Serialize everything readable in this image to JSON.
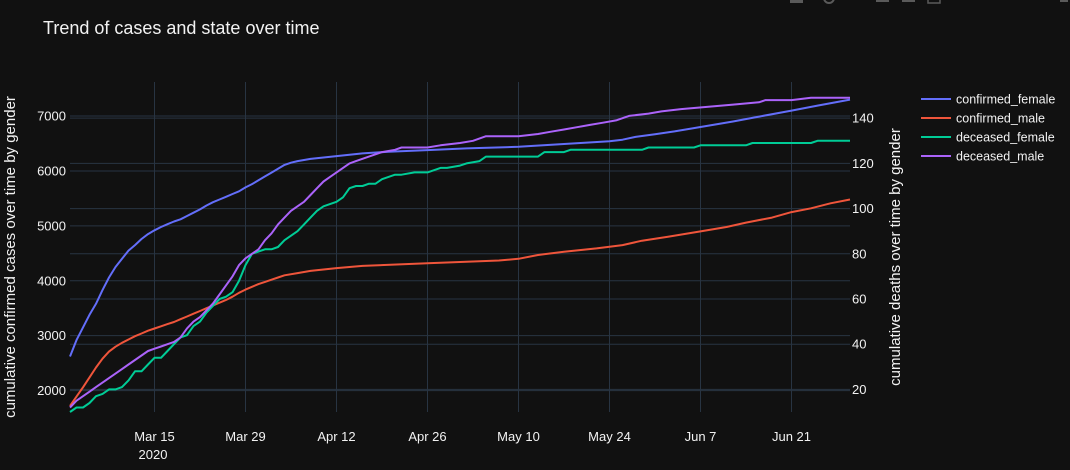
{
  "chart_data": {
    "type": "line",
    "title": "Trend of cases and state over time",
    "ylabel_left": "cumulative confirmed cases over time by gender",
    "ylabel_right": "cumulative deaths over time by gender",
    "x_ticks": [
      "Mar 15",
      "Mar 29",
      "Apr 12",
      "Apr 26",
      "May 10",
      "May 24",
      "Jun 7",
      "Jun 21"
    ],
    "x_year_label": "2020",
    "x_range": [
      "2020-03-02",
      "2020-06-30"
    ],
    "y_left_ticks": [
      2000,
      3000,
      4000,
      5000,
      6000,
      7000
    ],
    "y_left_range": [
      1610,
      7620
    ],
    "y_right_ticks": [
      20,
      40,
      60,
      80,
      100,
      120,
      140
    ],
    "y_right_range": [
      10,
      156
    ],
    "grid": true,
    "legend_position": "top-right",
    "series": [
      {
        "name": "confirmed_female",
        "axis": "left",
        "color": "#636efa",
        "points": [
          [
            "2020-03-02",
            2621
          ],
          [
            "2020-03-03",
            2920
          ],
          [
            "2020-03-04",
            3150
          ],
          [
            "2020-03-05",
            3380
          ],
          [
            "2020-03-06",
            3580
          ],
          [
            "2020-03-07",
            3830
          ],
          [
            "2020-03-08",
            4060
          ],
          [
            "2020-03-09",
            4250
          ],
          [
            "2020-03-10",
            4400
          ],
          [
            "2020-03-11",
            4550
          ],
          [
            "2020-03-12",
            4650
          ],
          [
            "2020-03-13",
            4760
          ],
          [
            "2020-03-14",
            4850
          ],
          [
            "2020-03-15",
            4920
          ],
          [
            "2020-03-16",
            4980
          ],
          [
            "2020-03-17",
            5030
          ],
          [
            "2020-03-18",
            5080
          ],
          [
            "2020-03-19",
            5120
          ],
          [
            "2020-03-20",
            5180
          ],
          [
            "2020-03-21",
            5240
          ],
          [
            "2020-03-22",
            5300
          ],
          [
            "2020-03-23",
            5370
          ],
          [
            "2020-03-24",
            5430
          ],
          [
            "2020-03-25",
            5480
          ],
          [
            "2020-03-26",
            5530
          ],
          [
            "2020-03-27",
            5580
          ],
          [
            "2020-03-28",
            5630
          ],
          [
            "2020-03-29",
            5700
          ],
          [
            "2020-03-30",
            5760
          ],
          [
            "2020-03-31",
            5830
          ],
          [
            "2020-04-01",
            5900
          ],
          [
            "2020-04-02",
            5970
          ],
          [
            "2020-04-03",
            6040
          ],
          [
            "2020-04-04",
            6110
          ],
          [
            "2020-04-05",
            6150
          ],
          [
            "2020-04-06",
            6180
          ],
          [
            "2020-04-08",
            6220
          ],
          [
            "2020-04-12",
            6270
          ],
          [
            "2020-04-16",
            6320
          ],
          [
            "2020-04-20",
            6350
          ],
          [
            "2020-04-26",
            6380
          ],
          [
            "2020-05-02",
            6410
          ],
          [
            "2020-05-10",
            6440
          ],
          [
            "2020-05-17",
            6490
          ],
          [
            "2020-05-24",
            6540
          ],
          [
            "2020-05-26",
            6570
          ],
          [
            "2020-05-28",
            6620
          ],
          [
            "2020-05-31",
            6670
          ],
          [
            "2020-06-03",
            6720
          ],
          [
            "2020-06-07",
            6800
          ],
          [
            "2020-06-12",
            6900
          ],
          [
            "2020-06-16",
            6990
          ],
          [
            "2020-06-21",
            7100
          ],
          [
            "2020-06-25",
            7190
          ],
          [
            "2020-06-30",
            7300
          ]
        ]
      },
      {
        "name": "confirmed_male",
        "axis": "left",
        "color": "#ef553b",
        "points": [
          [
            "2020-03-02",
            1720
          ],
          [
            "2020-03-03",
            1890
          ],
          [
            "2020-03-04",
            2060
          ],
          [
            "2020-03-05",
            2240
          ],
          [
            "2020-03-06",
            2420
          ],
          [
            "2020-03-07",
            2580
          ],
          [
            "2020-03-08",
            2710
          ],
          [
            "2020-03-09",
            2800
          ],
          [
            "2020-03-10",
            2870
          ],
          [
            "2020-03-11",
            2930
          ],
          [
            "2020-03-12",
            2990
          ],
          [
            "2020-03-13",
            3040
          ],
          [
            "2020-03-14",
            3090
          ],
          [
            "2020-03-15",
            3130
          ],
          [
            "2020-03-16",
            3170
          ],
          [
            "2020-03-17",
            3210
          ],
          [
            "2020-03-18",
            3250
          ],
          [
            "2020-03-19",
            3300
          ],
          [
            "2020-03-20",
            3350
          ],
          [
            "2020-03-21",
            3400
          ],
          [
            "2020-03-22",
            3450
          ],
          [
            "2020-03-23",
            3500
          ],
          [
            "2020-03-24",
            3550
          ],
          [
            "2020-03-25",
            3600
          ],
          [
            "2020-03-26",
            3650
          ],
          [
            "2020-03-27",
            3710
          ],
          [
            "2020-03-28",
            3780
          ],
          [
            "2020-03-29",
            3840
          ],
          [
            "2020-03-30",
            3890
          ],
          [
            "2020-03-31",
            3940
          ],
          [
            "2020-04-01",
            3980
          ],
          [
            "2020-04-02",
            4020
          ],
          [
            "2020-04-03",
            4060
          ],
          [
            "2020-04-04",
            4100
          ],
          [
            "2020-04-06",
            4140
          ],
          [
            "2020-04-08",
            4180
          ],
          [
            "2020-04-12",
            4230
          ],
          [
            "2020-04-16",
            4270
          ],
          [
            "2020-04-26",
            4320
          ],
          [
            "2020-05-07",
            4370
          ],
          [
            "2020-05-10",
            4400
          ],
          [
            "2020-05-13",
            4470
          ],
          [
            "2020-05-17",
            4530
          ],
          [
            "2020-05-22",
            4590
          ],
          [
            "2020-05-26",
            4650
          ],
          [
            "2020-05-29",
            4730
          ],
          [
            "2020-06-02",
            4800
          ],
          [
            "2020-06-07",
            4900
          ],
          [
            "2020-06-11",
            4980
          ],
          [
            "2020-06-14",
            5060
          ],
          [
            "2020-06-18",
            5150
          ],
          [
            "2020-06-21",
            5250
          ],
          [
            "2020-06-24",
            5320
          ],
          [
            "2020-06-27",
            5410
          ],
          [
            "2020-06-30",
            5480
          ]
        ]
      },
      {
        "name": "deceased_female",
        "axis": "right",
        "color": "#00cc96",
        "points": [
          [
            "2020-03-02",
            10
          ],
          [
            "2020-03-03",
            12
          ],
          [
            "2020-03-04",
            12
          ],
          [
            "2020-03-05",
            14
          ],
          [
            "2020-03-06",
            17
          ],
          [
            "2020-03-07",
            18
          ],
          [
            "2020-03-08",
            20
          ],
          [
            "2020-03-09",
            20
          ],
          [
            "2020-03-10",
            21
          ],
          [
            "2020-03-11",
            24
          ],
          [
            "2020-03-12",
            28
          ],
          [
            "2020-03-13",
            28
          ],
          [
            "2020-03-14",
            31
          ],
          [
            "2020-03-15",
            34
          ],
          [
            "2020-03-16",
            34
          ],
          [
            "2020-03-17",
            37
          ],
          [
            "2020-03-18",
            40
          ],
          [
            "2020-03-19",
            43
          ],
          [
            "2020-03-20",
            44
          ],
          [
            "2020-03-21",
            48
          ],
          [
            "2020-03-22",
            50
          ],
          [
            "2020-03-23",
            54
          ],
          [
            "2020-03-24",
            57
          ],
          [
            "2020-03-25",
            60
          ],
          [
            "2020-03-26",
            61
          ],
          [
            "2020-03-27",
            63
          ],
          [
            "2020-03-28",
            68
          ],
          [
            "2020-03-29",
            75
          ],
          [
            "2020-03-30",
            80
          ],
          [
            "2020-03-31",
            81
          ],
          [
            "2020-04-01",
            82
          ],
          [
            "2020-04-02",
            82
          ],
          [
            "2020-04-03",
            83
          ],
          [
            "2020-04-04",
            86
          ],
          [
            "2020-04-05",
            88
          ],
          [
            "2020-04-06",
            90
          ],
          [
            "2020-04-07",
            93
          ],
          [
            "2020-04-08",
            96
          ],
          [
            "2020-04-09",
            99
          ],
          [
            "2020-04-10",
            101
          ],
          [
            "2020-04-11",
            102
          ],
          [
            "2020-04-12",
            103
          ],
          [
            "2020-04-13",
            105
          ],
          [
            "2020-04-14",
            109
          ],
          [
            "2020-04-15",
            110
          ],
          [
            "2020-04-16",
            110
          ],
          [
            "2020-04-17",
            111
          ],
          [
            "2020-04-18",
            111
          ],
          [
            "2020-04-19",
            113
          ],
          [
            "2020-04-20",
            114
          ],
          [
            "2020-04-21",
            115
          ],
          [
            "2020-04-22",
            115
          ],
          [
            "2020-04-24",
            116
          ],
          [
            "2020-04-26",
            116
          ],
          [
            "2020-04-27",
            117
          ],
          [
            "2020-04-28",
            118
          ],
          [
            "2020-04-29",
            118
          ],
          [
            "2020-05-01",
            119
          ],
          [
            "2020-05-02",
            120
          ],
          [
            "2020-05-04",
            121
          ],
          [
            "2020-05-05",
            123
          ],
          [
            "2020-05-10",
            123
          ],
          [
            "2020-05-13",
            123
          ],
          [
            "2020-05-14",
            125
          ],
          [
            "2020-05-17",
            125
          ],
          [
            "2020-05-18",
            126
          ],
          [
            "2020-05-29",
            126
          ],
          [
            "2020-05-30",
            127
          ],
          [
            "2020-06-06",
            127
          ],
          [
            "2020-06-07",
            128
          ],
          [
            "2020-06-14",
            128
          ],
          [
            "2020-06-15",
            129
          ],
          [
            "2020-06-24",
            129
          ],
          [
            "2020-06-25",
            130
          ],
          [
            "2020-06-30",
            130
          ]
        ]
      },
      {
        "name": "deceased_male",
        "axis": "right",
        "color": "#ab63fa",
        "points": [
          [
            "2020-03-02",
            12
          ],
          [
            "2020-03-03",
            15
          ],
          [
            "2020-03-04",
            17
          ],
          [
            "2020-03-05",
            19
          ],
          [
            "2020-03-06",
            21
          ],
          [
            "2020-03-07",
            23
          ],
          [
            "2020-03-08",
            25
          ],
          [
            "2020-03-09",
            27
          ],
          [
            "2020-03-10",
            29
          ],
          [
            "2020-03-11",
            31
          ],
          [
            "2020-03-12",
            33
          ],
          [
            "2020-03-13",
            35
          ],
          [
            "2020-03-14",
            37
          ],
          [
            "2020-03-15",
            38
          ],
          [
            "2020-03-16",
            39
          ],
          [
            "2020-03-17",
            40
          ],
          [
            "2020-03-18",
            41
          ],
          [
            "2020-03-19",
            43
          ],
          [
            "2020-03-20",
            47
          ],
          [
            "2020-03-21",
            50
          ],
          [
            "2020-03-22",
            52
          ],
          [
            "2020-03-23",
            55
          ],
          [
            "2020-03-24",
            58
          ],
          [
            "2020-03-25",
            62
          ],
          [
            "2020-03-26",
            66
          ],
          [
            "2020-03-27",
            70
          ],
          [
            "2020-03-28",
            75
          ],
          [
            "2020-03-29",
            78
          ],
          [
            "2020-03-30",
            80
          ],
          [
            "2020-03-31",
            82
          ],
          [
            "2020-04-01",
            86
          ],
          [
            "2020-04-02",
            89
          ],
          [
            "2020-04-03",
            93
          ],
          [
            "2020-04-04",
            96
          ],
          [
            "2020-04-05",
            99
          ],
          [
            "2020-04-06",
            101
          ],
          [
            "2020-04-07",
            103
          ],
          [
            "2020-04-08",
            106
          ],
          [
            "2020-04-09",
            109
          ],
          [
            "2020-04-10",
            112
          ],
          [
            "2020-04-11",
            114
          ],
          [
            "2020-04-12",
            116
          ],
          [
            "2020-04-13",
            118
          ],
          [
            "2020-04-14",
            120
          ],
          [
            "2020-04-15",
            121
          ],
          [
            "2020-04-16",
            122
          ],
          [
            "2020-04-17",
            123
          ],
          [
            "2020-04-18",
            124
          ],
          [
            "2020-04-19",
            125
          ],
          [
            "2020-04-21",
            126
          ],
          [
            "2020-04-22",
            127
          ],
          [
            "2020-04-24",
            127
          ],
          [
            "2020-04-26",
            127
          ],
          [
            "2020-04-28",
            128
          ],
          [
            "2020-05-01",
            129
          ],
          [
            "2020-05-03",
            130
          ],
          [
            "2020-05-05",
            132
          ],
          [
            "2020-05-10",
            132
          ],
          [
            "2020-05-13",
            133
          ],
          [
            "2020-05-15",
            134
          ],
          [
            "2020-05-17",
            135
          ],
          [
            "2020-05-19",
            136
          ],
          [
            "2020-05-21",
            137
          ],
          [
            "2020-05-23",
            138
          ],
          [
            "2020-05-25",
            139
          ],
          [
            "2020-05-27",
            141
          ],
          [
            "2020-05-30",
            142
          ],
          [
            "2020-06-01",
            143
          ],
          [
            "2020-06-04",
            144
          ],
          [
            "2020-06-08",
            145
          ],
          [
            "2020-06-12",
            146
          ],
          [
            "2020-06-16",
            147
          ],
          [
            "2020-06-17",
            148
          ],
          [
            "2020-06-21",
            148
          ],
          [
            "2020-06-24",
            149
          ],
          [
            "2020-06-30",
            149
          ]
        ]
      }
    ]
  }
}
